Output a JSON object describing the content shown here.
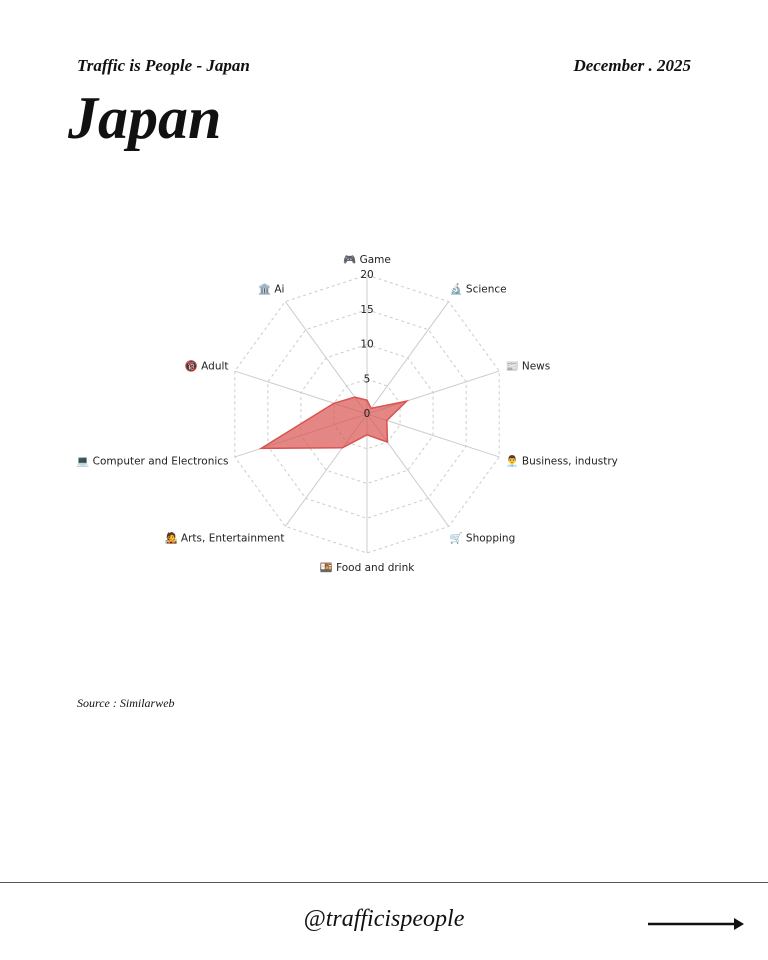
{
  "header": {
    "subtitle": "Traffic is People - Japan",
    "date": "December . 2025",
    "title": "Japan"
  },
  "chart_data": {
    "type": "radar",
    "categories": [
      "🎮 Game",
      "🔬 Science",
      "📰 News",
      "👨‍💼 Business, industry",
      "🛒 Shopping",
      "🍱 Food and drink",
      "🧑‍🎤 Arts, Entertainment",
      "💻 Computer and Electronics",
      "🔞 Adult",
      "🏛️ Ai"
    ],
    "values": [
      2,
      1,
      6,
      3,
      5,
      3,
      6,
      16,
      5,
      3
    ],
    "color": "#d9534f",
    "ylim": [
      0,
      20
    ],
    "yticks": [
      0,
      5,
      10,
      15,
      20
    ],
    "grid": true
  },
  "source": "Source : Similarweb",
  "footer": {
    "handle": "@trafficispeople"
  }
}
